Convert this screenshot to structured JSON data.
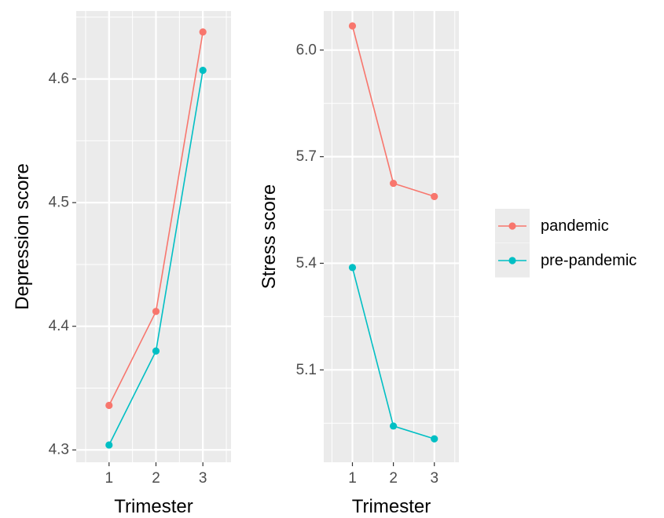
{
  "chart_data": [
    {
      "type": "line",
      "xlabel": "Trimester",
      "ylabel": "Depression score",
      "x": [
        1,
        2,
        3
      ],
      "xlim": [
        0.3,
        3.6
      ],
      "ylim": [
        4.29,
        4.655
      ],
      "y_ticks": [
        4.3,
        4.4,
        4.5,
        4.6
      ],
      "y_tick_labels": [
        "4.3",
        "4.4",
        "4.5",
        "4.6"
      ],
      "x_ticks": [
        1,
        2,
        3
      ],
      "x_tick_labels": [
        "1",
        "2",
        "3"
      ],
      "grid": true,
      "series": [
        {
          "name": "pandemic",
          "values": [
            4.336,
            4.412,
            4.638
          ]
        },
        {
          "name": "pre-pandemic",
          "values": [
            4.304,
            4.38,
            4.607
          ]
        }
      ]
    },
    {
      "type": "line",
      "xlabel": "Trimester",
      "ylabel": "Stress score",
      "x": [
        1,
        2,
        3
      ],
      "xlim": [
        0.3,
        3.6
      ],
      "ylim": [
        4.84,
        6.11
      ],
      "y_ticks": [
        5.1,
        5.4,
        5.7,
        6.0
      ],
      "y_tick_labels": [
        "5.1",
        "5.4",
        "5.7",
        "6.0"
      ],
      "x_ticks": [
        1,
        2,
        3
      ],
      "x_tick_labels": [
        "1",
        "2",
        "3"
      ],
      "grid": true,
      "series": [
        {
          "name": "pandemic",
          "values": [
            6.068,
            5.625,
            5.588
          ]
        },
        {
          "name": "pre-pandemic",
          "values": [
            5.388,
            4.942,
            4.906
          ]
        }
      ]
    }
  ],
  "legend": {
    "placement": "right",
    "items": [
      {
        "label": "pandemic",
        "color": "#F8766D"
      },
      {
        "label": "pre-pandemic",
        "color": "#00BFC4"
      }
    ]
  },
  "colors": {
    "panel_background": "#EBEBEB",
    "grid": "#FFFFFF",
    "tick_text": "#4D4D4D"
  }
}
